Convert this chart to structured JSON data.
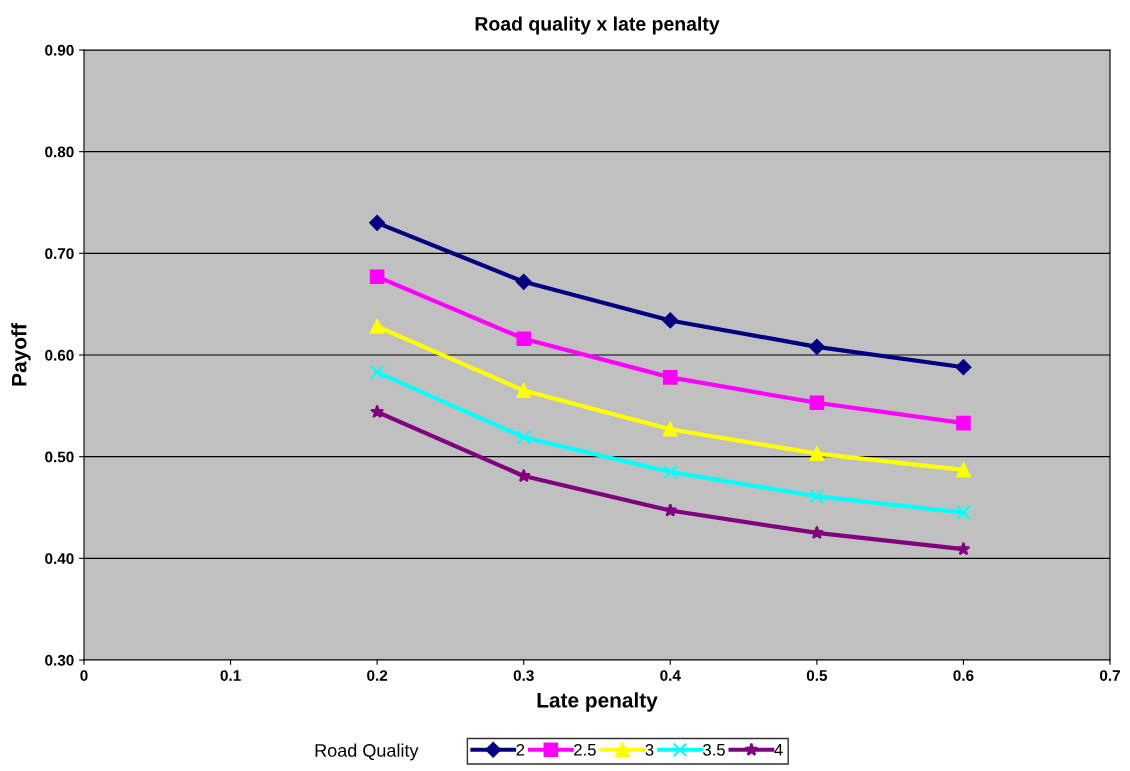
{
  "chart_data": {
    "type": "line",
    "title": "Road quality x late penalty",
    "xlabel": "Late penalty",
    "ylabel": "Payoff",
    "legend_title": "Road Quality",
    "legend": "bottom",
    "grid": "y",
    "line_style": "solid",
    "x": [
      0.2,
      0.3,
      0.4,
      0.5,
      0.6
    ],
    "xlim": [
      0,
      0.7
    ],
    "xticks": [
      0,
      0.1,
      0.2,
      0.3,
      0.4,
      0.5,
      0.6,
      0.7
    ],
    "ylim": [
      0.3,
      0.9
    ],
    "yticks": [
      {
        "value": 0.3,
        "label": "0.30"
      },
      {
        "value": 0.4,
        "label": "0.40"
      },
      {
        "value": 0.5,
        "label": "0.50"
      },
      {
        "value": 0.6,
        "label": "0.60"
      },
      {
        "value": 0.7,
        "label": "0.70"
      },
      {
        "value": 0.8,
        "label": "0.80"
      },
      {
        "value": 0.9,
        "label": "0.90"
      }
    ],
    "series": [
      {
        "name": "2",
        "color": "#000080",
        "marker": "diamond",
        "values": [
          0.73,
          0.672,
          0.634,
          0.608,
          0.588
        ]
      },
      {
        "name": "2.5",
        "color": "#ff00ff",
        "marker": "square",
        "values": [
          0.677,
          0.616,
          0.578,
          0.553,
          0.533
        ]
      },
      {
        "name": "3",
        "color": "#ffff00",
        "marker": "triangle",
        "values": [
          0.628,
          0.565,
          0.527,
          0.503,
          0.487
        ]
      },
      {
        "name": "3.5",
        "color": "#00ffff",
        "marker": "cross",
        "values": [
          0.583,
          0.519,
          0.485,
          0.461,
          0.445
        ]
      },
      {
        "name": "4",
        "color": "#800080",
        "marker": "star",
        "values": [
          0.544,
          0.481,
          0.447,
          0.425,
          0.409
        ]
      }
    ]
  }
}
